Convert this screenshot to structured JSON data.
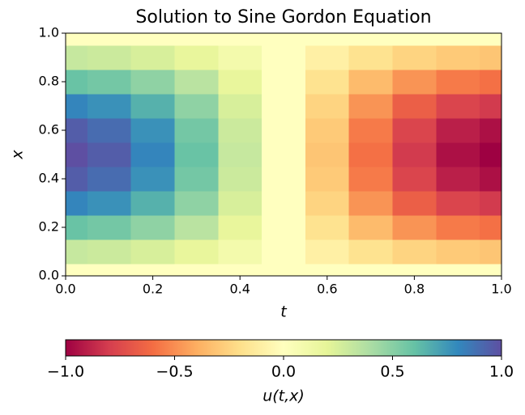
{
  "chart_data": {
    "type": "heatmap",
    "title": "Solution to Sine Gordon Equation",
    "x_label": "t",
    "y_label": "x",
    "colorbar_label": "u(t,x)",
    "colormap": "Spectral",
    "t": [
      0,
      0.1,
      0.2,
      0.3,
      0.4,
      0.5,
      0.6,
      0.7,
      0.8,
      0.9,
      1
    ],
    "x": [
      0,
      0.1,
      0.2,
      0.3,
      0.4,
      0.5,
      0.6,
      0.7,
      0.8,
      0.9,
      1
    ],
    "z": [
      [
        0,
        0,
        0,
        0,
        0,
        0,
        0,
        0,
        0,
        0,
        0
      ],
      [
        0.31,
        0.29,
        0.25,
        0.18,
        0.1,
        0,
        -0.1,
        -0.18,
        -0.25,
        -0.29,
        -0.31
      ],
      [
        0.59,
        0.56,
        0.48,
        0.35,
        0.18,
        0,
        -0.18,
        -0.35,
        -0.48,
        -0.56,
        -0.59
      ],
      [
        0.81,
        0.77,
        0.66,
        0.48,
        0.25,
        0,
        -0.25,
        -0.48,
        -0.66,
        -0.77,
        -0.81
      ],
      [
        0.95,
        0.9,
        0.77,
        0.56,
        0.29,
        0,
        -0.29,
        -0.56,
        -0.77,
        -0.9,
        -0.95
      ],
      [
        1,
        0.95,
        0.81,
        0.59,
        0.31,
        0,
        -0.31,
        -0.59,
        -0.81,
        -0.95,
        -1
      ],
      [
        0.95,
        0.9,
        0.77,
        0.56,
        0.29,
        0,
        -0.29,
        -0.56,
        -0.77,
        -0.9,
        -0.95
      ],
      [
        0.81,
        0.77,
        0.66,
        0.48,
        0.25,
        0,
        -0.25,
        -0.48,
        -0.66,
        -0.77,
        -0.81
      ],
      [
        0.59,
        0.56,
        0.48,
        0.35,
        0.18,
        0,
        -0.18,
        -0.35,
        -0.48,
        -0.56,
        -0.59
      ],
      [
        0.31,
        0.29,
        0.25,
        0.18,
        0.1,
        0,
        -0.1,
        -0.18,
        -0.25,
        -0.29,
        -0.31
      ],
      [
        0,
        0,
        0,
        0,
        0,
        0,
        0,
        0,
        0,
        0,
        0
      ]
    ],
    "xlim": [
      0,
      1
    ],
    "ylim": [
      0,
      1
    ],
    "clim": [
      -1,
      1
    ],
    "xticks": [
      {
        "value": 0,
        "label": "0.0"
      },
      {
        "value": 0.2,
        "label": "0.2"
      },
      {
        "value": 0.4,
        "label": "0.4"
      },
      {
        "value": 0.6,
        "label": "0.6"
      },
      {
        "value": 0.8,
        "label": "0.8"
      },
      {
        "value": 1,
        "label": "1.0"
      }
    ],
    "yticks": [
      {
        "value": 0,
        "label": "0.0"
      },
      {
        "value": 0.2,
        "label": "0.2"
      },
      {
        "value": 0.4,
        "label": "0.4"
      },
      {
        "value": 0.6,
        "label": "0.6"
      },
      {
        "value": 0.8,
        "label": "0.8"
      },
      {
        "value": 1,
        "label": "1.0"
      }
    ],
    "cticks": [
      {
        "value": -1,
        "label": "−1.0"
      },
      {
        "value": -0.5,
        "label": "−0.5"
      },
      {
        "value": 0,
        "label": "0.0"
      },
      {
        "value": 0.5,
        "label": "0.5"
      },
      {
        "value": 1,
        "label": "1.0"
      }
    ]
  }
}
